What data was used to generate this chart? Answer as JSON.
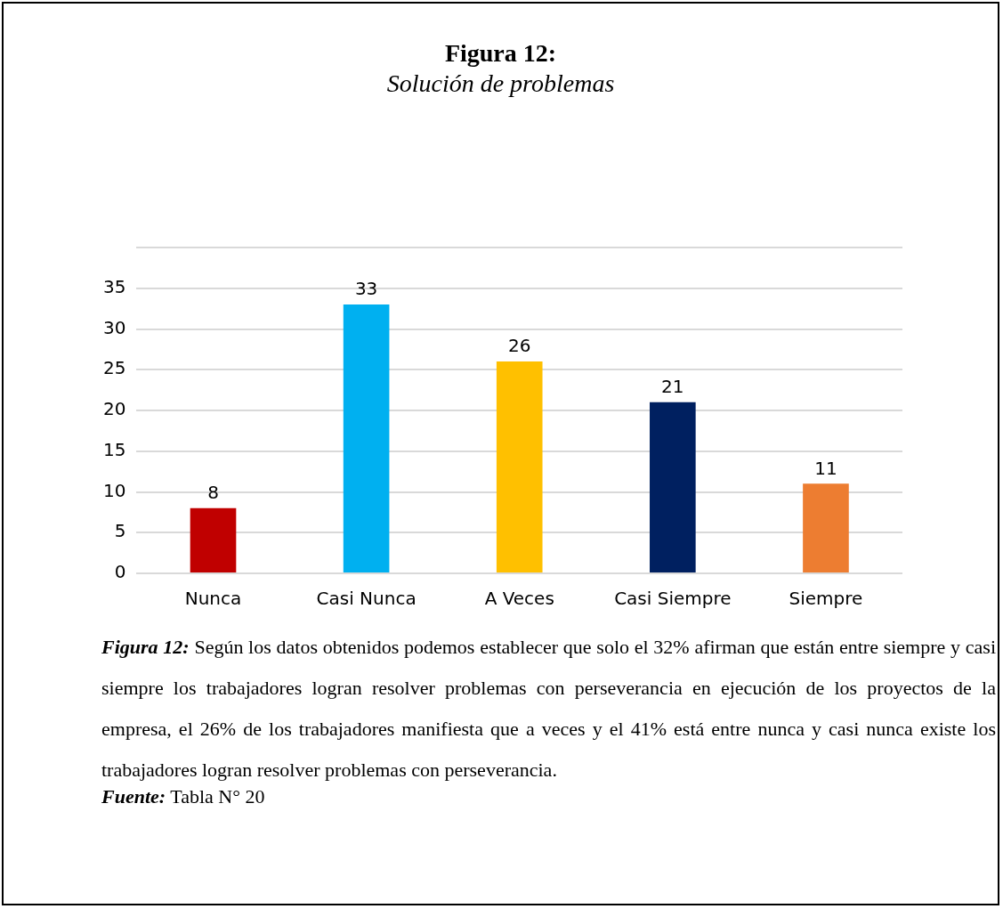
{
  "chart_data": {
    "type": "bar",
    "title": "Figura 12:",
    "subtitle": "Solución de problemas",
    "categories": [
      "Nunca",
      "Casi Nunca",
      "A Veces",
      "Casi Siempre",
      "Siempre"
    ],
    "values": [
      8,
      33,
      26,
      21,
      11
    ],
    "colors": [
      "#c00000",
      "#00b0f0",
      "#ffc000",
      "#002060",
      "#ed7d31"
    ],
    "ylim": [
      0,
      40
    ],
    "yticks": [
      0,
      5,
      10,
      15,
      20,
      25,
      30,
      35,
      {
        "value": 40,
        "label": null
      }
    ],
    "grid": "y",
    "legend": false,
    "data_labels": true,
    "annotations": [
      "Figura 12: Según los datos obtenidos podemos establecer que solo el 32% afirman que están entre siempre y casi siempre los trabajadores logran resolver problemas con perseverancia en ejecución de los proyectos de la empresa, el 26% de los trabajadores manifiesta que a veces y el 41% está entre nunca y casi nunca existe los trabajadores logran resolver problemas con perseverancia.",
      "Fuente: Tabla N° 20"
    ]
  }
}
